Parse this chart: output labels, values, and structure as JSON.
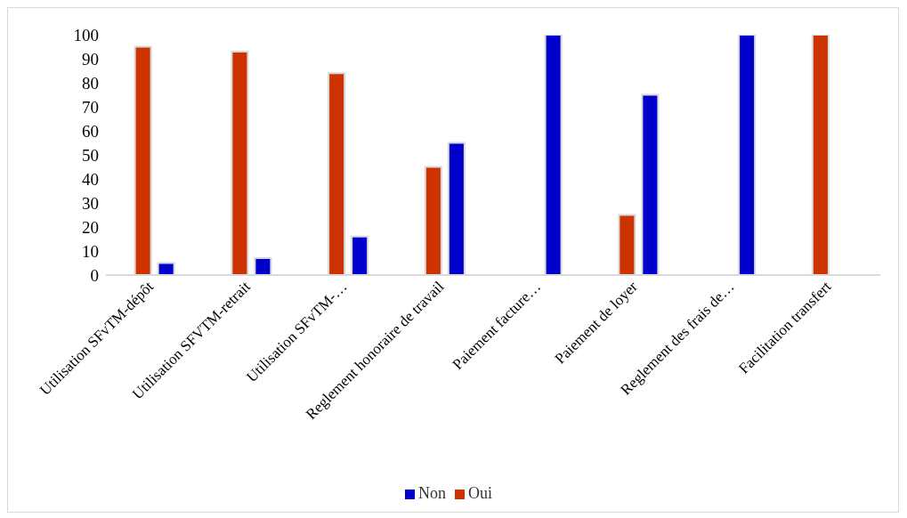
{
  "chart_data": {
    "type": "bar",
    "categories": [
      "Utilisation SFvTM-dépôt",
      "Utilisation SFVTM-retrait",
      "Utilisation SFvTM-…",
      "Reglement honoraire de travail",
      "Paiement facture…",
      "Paiement de loyer",
      "Reglement des frais de…",
      "Facilitation transfert"
    ],
    "series": [
      {
        "name": "Oui",
        "color": "#cc3300",
        "values": [
          95,
          93,
          84,
          45,
          0,
          25,
          0,
          100
        ]
      },
      {
        "name": "Non",
        "color": "#0000cc",
        "values": [
          5,
          7,
          16,
          55,
          100,
          75,
          100,
          0
        ]
      }
    ],
    "ylim": [
      0,
      100
    ],
    "yticks": [
      0,
      10,
      20,
      30,
      40,
      50,
      60,
      70,
      80,
      90,
      100
    ],
    "grid": false,
    "legend": "bottom"
  }
}
